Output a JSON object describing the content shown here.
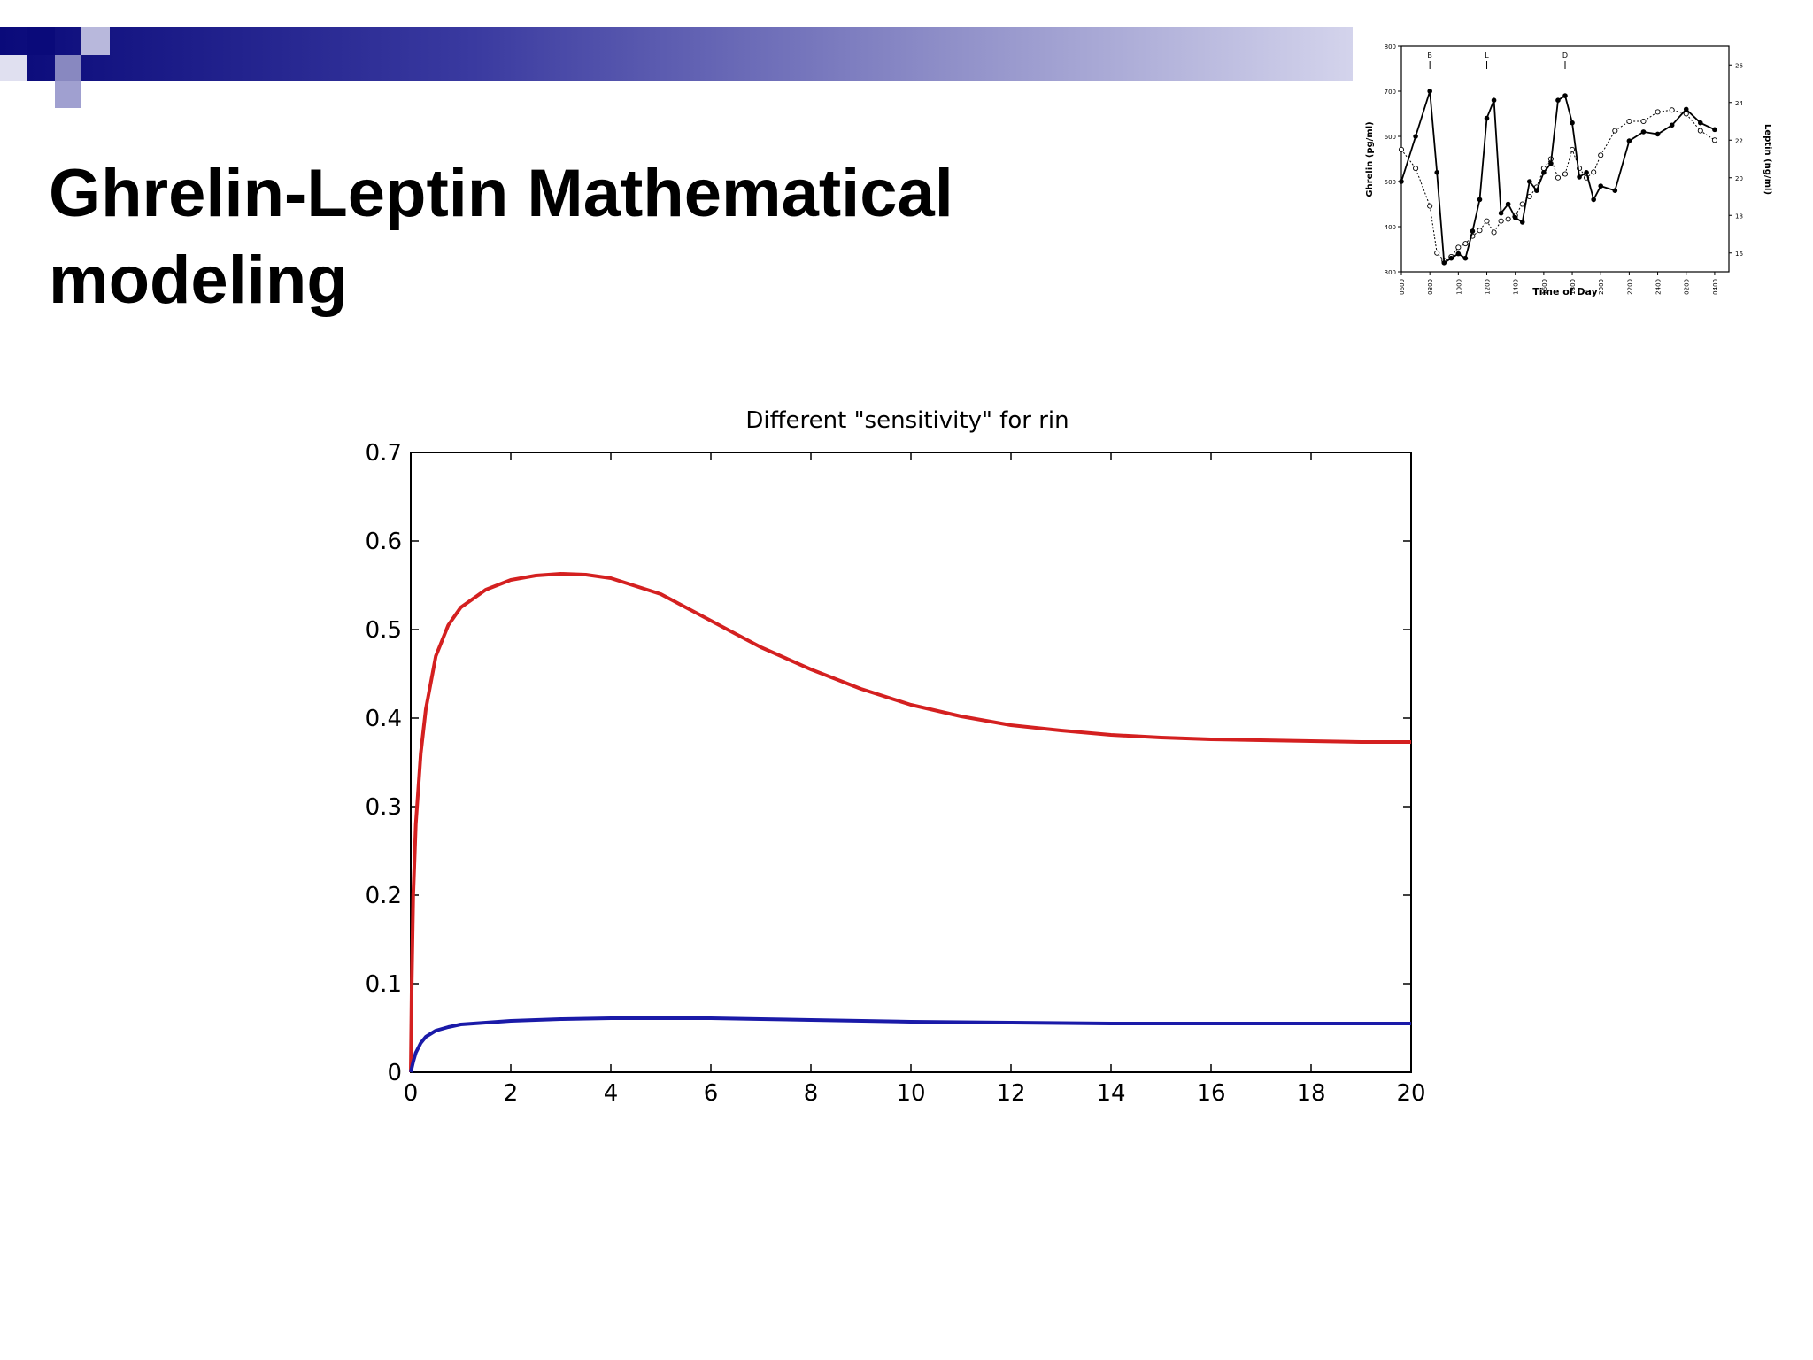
{
  "slide": {
    "title": "Ghrelin-Leptin Mathematical\nmodeling",
    "colors": {
      "header_dark": "#0a0a7a",
      "header_light": "#d4d4ec"
    }
  },
  "chart_data": [
    {
      "type": "line",
      "title": "Different \"sensitivity\" for rin",
      "xlabel": "",
      "ylabel": "",
      "xlim": [
        0,
        20
      ],
      "ylim": [
        0,
        0.7
      ],
      "xticks": [
        0,
        2,
        4,
        6,
        8,
        10,
        12,
        14,
        16,
        18,
        20
      ],
      "yticks": [
        0,
        0.1,
        0.2,
        0.3,
        0.4,
        0.5,
        0.6,
        0.7
      ],
      "grid": false,
      "series": [
        {
          "color": "#d42020",
          "x": [
            0,
            0.02,
            0.05,
            0.1,
            0.2,
            0.3,
            0.5,
            0.75,
            1,
            1.5,
            2,
            2.5,
            3,
            3.5,
            4,
            5,
            6,
            7,
            8,
            9,
            10,
            11,
            12,
            13,
            14,
            15,
            16,
            17,
            18,
            19,
            20
          ],
          "y": [
            0,
            0.1,
            0.2,
            0.28,
            0.36,
            0.41,
            0.47,
            0.505,
            0.525,
            0.545,
            0.556,
            0.561,
            0.563,
            0.562,
            0.558,
            0.54,
            0.51,
            0.48,
            0.455,
            0.433,
            0.415,
            0.402,
            0.392,
            0.386,
            0.381,
            0.378,
            0.376,
            0.375,
            0.374,
            0.373,
            0.373
          ]
        },
        {
          "color": "#1a1aa8",
          "x": [
            0,
            0.05,
            0.1,
            0.2,
            0.3,
            0.5,
            0.75,
            1,
            1.5,
            2,
            3,
            4,
            5,
            6,
            7,
            8,
            10,
            12,
            14,
            16,
            18,
            20
          ],
          "y": [
            0,
            0.012,
            0.022,
            0.033,
            0.04,
            0.047,
            0.051,
            0.054,
            0.056,
            0.058,
            0.06,
            0.061,
            0.061,
            0.061,
            0.06,
            0.059,
            0.057,
            0.056,
            0.055,
            0.055,
            0.055,
            0.055
          ]
        }
      ]
    },
    {
      "type": "line",
      "title": "",
      "xlabel": "Time of Day",
      "ylabel": "Ghrelin (pg/ml)",
      "y2label": "Leptin (ng/ml)",
      "ylim": [
        300,
        800
      ],
      "y2lim": [
        15,
        27
      ],
      "yticks": [
        300,
        400,
        500,
        600,
        700,
        800
      ],
      "y2ticks": [
        16,
        18,
        20,
        22,
        24,
        26
      ],
      "xticks": [
        "0600",
        "0800",
        "1000",
        "1200",
        "1400",
        "1600",
        "1800",
        "2000",
        "2200",
        "2400",
        "0200",
        "0400"
      ],
      "meal_markers": [
        "B",
        "L",
        "D"
      ],
      "meal_hours": [
        8,
        12,
        17.5
      ],
      "series": [
        {
          "name": "Ghrelin",
          "style": "solid-filled",
          "hours": [
            6,
            7,
            8,
            8.5,
            9,
            9.5,
            10,
            10.5,
            11,
            11.5,
            12,
            12.5,
            13,
            13.5,
            14,
            14.5,
            15,
            15.5,
            16,
            16.5,
            17,
            17.5,
            18,
            18.5,
            19,
            19.5,
            20,
            21,
            22,
            23,
            24,
            25,
            26,
            27,
            28
          ],
          "values": [
            500,
            600,
            700,
            520,
            320,
            330,
            340,
            330,
            390,
            460,
            640,
            680,
            430,
            450,
            420,
            410,
            500,
            480,
            520,
            540,
            680,
            690,
            630,
            510,
            520,
            460,
            490,
            480,
            590,
            610,
            605,
            625,
            660,
            630,
            615
          ]
        },
        {
          "name": "Leptin",
          "style": "dotted-open",
          "hours": [
            6,
            7,
            8,
            8.5,
            9,
            9.5,
            10,
            10.5,
            11,
            11.5,
            12,
            12.5,
            13,
            13.5,
            14,
            14.5,
            15,
            15.5,
            16,
            16.5,
            17,
            17.5,
            18,
            18.5,
            19,
            19.5,
            20,
            21,
            22,
            23,
            24,
            25,
            26,
            27,
            28
          ],
          "values": [
            21.5,
            20.5,
            18.5,
            16,
            15.6,
            15.8,
            16.3,
            16.5,
            16.9,
            17.2,
            17.7,
            17.1,
            17.7,
            17.8,
            18,
            18.6,
            19,
            19.5,
            20.5,
            21,
            20,
            20.2,
            21.5,
            20.5,
            20,
            20.3,
            21.2,
            22.5,
            23,
            23,
            23.5,
            23.6,
            23.4,
            22.5,
            22
          ]
        }
      ]
    }
  ]
}
